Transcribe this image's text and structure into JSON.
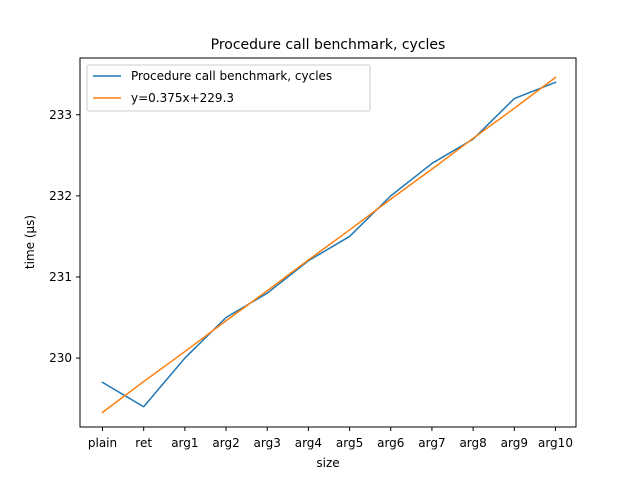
{
  "chart_data": {
    "type": "line",
    "title": "Procedure call benchmark, cycles",
    "xlabel": "size",
    "ylabel": "time (µs)",
    "categories": [
      "plain",
      "ret",
      "arg1",
      "arg2",
      "arg3",
      "arg4",
      "arg5",
      "arg6",
      "arg7",
      "arg8",
      "arg9",
      "arg10"
    ],
    "ylim": [
      229.15,
      233.7
    ],
    "yticks": [
      230,
      231,
      232,
      233
    ],
    "grid": false,
    "legend_position": "upper-left",
    "series": [
      {
        "name": "Procedure call benchmark, cycles",
        "color": "#1f77b4",
        "values": [
          229.7,
          229.4,
          230.0,
          230.5,
          230.8,
          231.2,
          231.5,
          232.0,
          232.4,
          232.7,
          233.2,
          233.4
        ]
      },
      {
        "name": "y=0.375x+229.3",
        "color": "#ff7f0e",
        "values": [
          229.33,
          229.71,
          230.08,
          230.46,
          230.83,
          231.21,
          231.58,
          231.96,
          232.33,
          232.71,
          233.08,
          233.46
        ]
      }
    ]
  }
}
